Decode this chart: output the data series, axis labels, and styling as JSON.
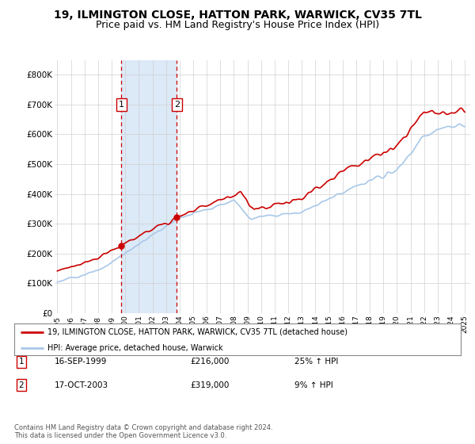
{
  "title1": "19, ILMINGTON CLOSE, HATTON PARK, WARWICK, CV35 7TL",
  "title2": "Price paid vs. HM Land Registry's House Price Index (HPI)",
  "red_label": "19, ILMINGTON CLOSE, HATTON PARK, WARWICK, CV35 7TL (detached house)",
  "blue_label": "HPI: Average price, detached house, Warwick",
  "footnote": "Contains HM Land Registry data © Crown copyright and database right 2024.\nThis data is licensed under the Open Government Licence v3.0.",
  "transactions": [
    {
      "num": 1,
      "date": "16-SEP-1999",
      "price": 216000,
      "hpi_pct": "25%",
      "year": 1999.71
    },
    {
      "num": 2,
      "date": "17-OCT-2003",
      "price": 319000,
      "hpi_pct": "9%",
      "year": 2003.79
    }
  ],
  "hpi_color": "#a8c8e8",
  "price_color": "#cc0000",
  "marker_color": "#cc0000",
  "vline_color": "#cc0000",
  "shade_color": "#dce9f7",
  "ylim": [
    0,
    850000
  ],
  "yticks": [
    0,
    100000,
    200000,
    300000,
    400000,
    500000,
    600000,
    700000,
    800000
  ],
  "bg_color": "#ffffff",
  "grid_color": "#d0d0d0",
  "title1_fontsize": 10,
  "title2_fontsize": 9
}
